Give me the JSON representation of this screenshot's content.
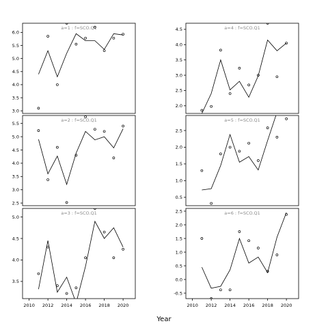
{
  "chart_data": {
    "type": "line",
    "xlabel": "Year",
    "panels": [
      {
        "label": "a=1 : f=SCO.Q1",
        "xlim": [
          2009.3,
          2021.3
        ],
        "ylim": [
          2.9,
          6.35
        ],
        "yticks": [
          3.0,
          3.5,
          4.0,
          4.5,
          5.0,
          5.5,
          6.0
        ],
        "xticks": [],
        "line": {
          "x": [
            2011,
            2012,
            2013,
            2014,
            2015,
            2016,
            2017,
            2018,
            2019,
            2020
          ],
          "y": [
            4.4,
            5.3,
            4.3,
            5.2,
            5.95,
            5.68,
            5.68,
            5.35,
            5.95,
            5.9
          ]
        },
        "points": {
          "x": [
            2011,
            2012,
            2013,
            2014,
            2015,
            2016,
            2017,
            2018,
            2019,
            2020
          ],
          "y": [
            3.1,
            5.85,
            4.0,
            6.35,
            5.55,
            5.78,
            6.2,
            5.3,
            5.78,
            5.93
          ]
        }
      },
      {
        "label": "a=2 : f=SCO.Q1",
        "xlim": [
          2009.3,
          2021.3
        ],
        "ylim": [
          2.4,
          5.8
        ],
        "yticks": [
          2.5,
          3.0,
          3.5,
          4.0,
          4.5,
          5.0,
          5.5
        ],
        "xticks": [],
        "line": {
          "x": [
            2011,
            2012,
            2013,
            2014,
            2015,
            2016,
            2017,
            2018,
            2019,
            2020
          ],
          "y": [
            4.9,
            3.6,
            4.27,
            3.2,
            4.38,
            5.2,
            4.88,
            5.0,
            4.58,
            5.3
          ]
        },
        "points": {
          "x": [
            2011,
            2012,
            2013,
            2014,
            2015,
            2016,
            2017,
            2018,
            2019,
            2020
          ],
          "y": [
            5.23,
            3.38,
            4.6,
            2.52,
            4.3,
            5.75,
            5.28,
            5.2,
            4.2,
            5.4
          ]
        }
      },
      {
        "label": "a=3 : f=SCO.Q1",
        "xlim": [
          2009.3,
          2021.3
        ],
        "ylim": [
          3.1,
          5.2
        ],
        "yticks": [
          3.5,
          4.0,
          4.5,
          5.0
        ],
        "xticks": [
          2010,
          2012,
          2014,
          2016,
          2018,
          2020
        ],
        "line": {
          "x": [
            2011,
            2012,
            2013,
            2014,
            2015,
            2016,
            2017,
            2018,
            2019,
            2020
          ],
          "y": [
            3.32,
            4.45,
            3.25,
            3.6,
            3.0,
            3.85,
            4.9,
            4.5,
            4.75,
            4.3
          ]
        },
        "points": {
          "x": [
            2011,
            2012,
            2013,
            2014,
            2015,
            2016,
            2017,
            2018,
            2019,
            2020
          ],
          "y": [
            3.68,
            4.3,
            3.4,
            3.22,
            3.35,
            4.05,
            5.2,
            4.65,
            4.05,
            4.25
          ]
        }
      },
      {
        "label": "a=4 : f=SCO.Q1",
        "xlim": [
          2009.3,
          2021.3
        ],
        "ylim": [
          1.75,
          4.7
        ],
        "yticks": [
          2.0,
          2.5,
          3.0,
          3.5,
          4.0,
          4.5
        ],
        "xticks": [],
        "line": {
          "x": [
            2011,
            2012,
            2013,
            2014,
            2015,
            2016,
            2017,
            2018,
            2019,
            2020
          ],
          "y": [
            1.75,
            2.4,
            3.5,
            2.52,
            2.8,
            2.28,
            2.98,
            4.15,
            3.8,
            4.05
          ]
        },
        "points": {
          "x": [
            2011,
            2012,
            2013,
            2014,
            2015,
            2016,
            2017,
            2018,
            2019,
            2020
          ],
          "y": [
            1.85,
            1.98,
            3.82,
            2.4,
            3.23,
            2.68,
            3.0,
            4.7,
            2.95,
            4.05
          ]
        }
      },
      {
        "label": "a=5 : f=SCO.Q1",
        "xlim": [
          2009.3,
          2021.3
        ],
        "ylim": [
          0.25,
          2.95
        ],
        "yticks": [
          0.5,
          1.0,
          1.5,
          2.0,
          2.5
        ],
        "xticks": [],
        "line": {
          "x": [
            2011,
            2012,
            2013,
            2014,
            2015,
            2016,
            2017,
            2018,
            2019,
            2020
          ],
          "y": [
            0.72,
            0.76,
            1.45,
            2.38,
            1.55,
            1.72,
            1.32,
            2.2,
            3.05,
            3.4
          ]
        },
        "points": {
          "x": [
            2011,
            2012,
            2013,
            2014,
            2015,
            2016,
            2017,
            2018,
            2019,
            2020
          ],
          "y": [
            1.3,
            0.32,
            1.8,
            2.0,
            1.88,
            2.12,
            1.6,
            2.58,
            2.3,
            2.85
          ]
        }
      },
      {
        "label": "a=6 : f=SCO.Q1",
        "xlim": [
          2009.3,
          2021.3
        ],
        "ylim": [
          -0.7,
          2.6
        ],
        "yticks": [
          -0.5,
          0.0,
          0.5,
          1.0,
          1.5,
          2.0,
          2.5
        ],
        "xticks": [
          2010,
          2012,
          2014,
          2016,
          2018,
          2020
        ],
        "line": {
          "x": [
            2011,
            2012,
            2013,
            2014,
            2015,
            2016,
            2017,
            2018,
            2019,
            2020
          ],
          "y": [
            0.45,
            -0.32,
            -0.25,
            0.35,
            1.5,
            0.6,
            0.82,
            0.25,
            1.55,
            2.45
          ]
        },
        "points": {
          "x": [
            2011,
            2012,
            2013,
            2014,
            2015,
            2016,
            2017,
            2018,
            2019,
            2020
          ],
          "y": [
            1.5,
            -0.7,
            -0.38,
            -0.38,
            1.75,
            1.42,
            1.15,
            0.3,
            0.9,
            2.38
          ]
        }
      }
    ]
  }
}
